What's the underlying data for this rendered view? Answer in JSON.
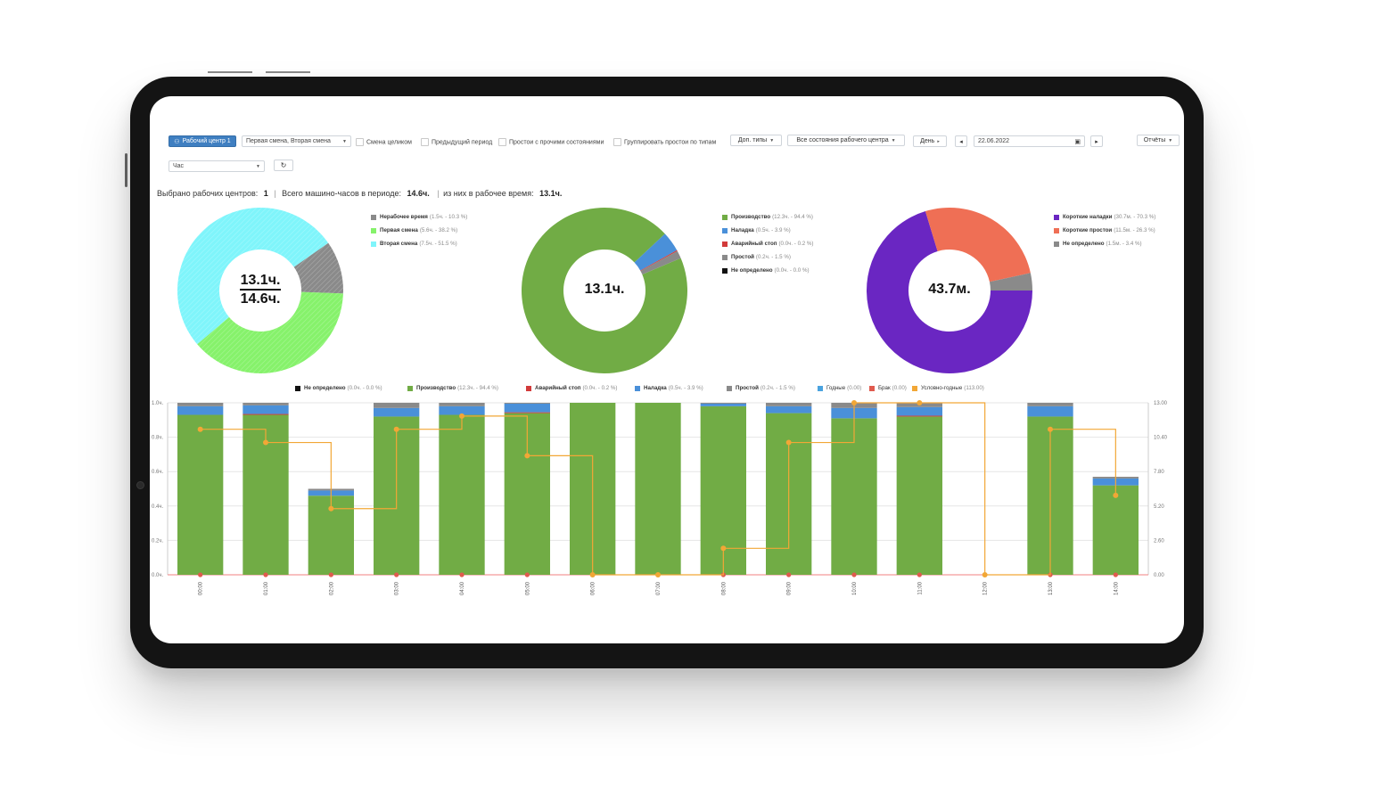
{
  "toolbar": {
    "workcenter_button": "Рабочий центр 1",
    "shifts_select": "Первая смена, Вторая смена",
    "whole_shift": "Смена целиком",
    "previous_period": "Предыдущий период",
    "downtime_with_other": "Простои с прочими состояниями",
    "group_downtime": "Группировать простои по типам",
    "extra_types": "Доп. типы",
    "all_states": "Все состояния рабочего центра",
    "period_select": "День",
    "date_value": "22.06.2022",
    "reports": "Отчёты",
    "granularity_select": "Час"
  },
  "summary": {
    "selected_label": "Выбрано рабочих центров:",
    "selected_value": "1",
    "total_label": "Всего машино-часов в периоде:",
    "total_value": "14.6ч.",
    "work_label": "из них в рабочее время:",
    "work_value": "13.1ч."
  },
  "donut1": {
    "center_top": "13.1ч.",
    "center_bottom": "14.6ч.",
    "legend": [
      {
        "name": "Нерабочее время",
        "detail": "(1.5ч. - 10.3 %)",
        "color": "#8a8a8a",
        "value": 10.3
      },
      {
        "name": "Первая смена",
        "detail": "(5.6ч. - 38.2 %)",
        "color": "#86f26b",
        "value": 38.2
      },
      {
        "name": "Вторая смена",
        "detail": "(7.5ч. - 51.5 %)",
        "color": "#7ff5fb",
        "value": 51.5
      }
    ]
  },
  "donut2": {
    "center": "13.1ч.",
    "legend": [
      {
        "name": "Производство",
        "detail": "(12.3ч. - 94.4 %)",
        "color": "#71ac45",
        "value": 94.4
      },
      {
        "name": "Наладка",
        "detail": "(0.5ч. - 3.9 %)",
        "color": "#4a90d9",
        "value": 3.9
      },
      {
        "name": "Аварийный стоп",
        "detail": "(0.0ч. - 0.2 %)",
        "color": "#d23a3a",
        "value": 0.2
      },
      {
        "name": "Простой",
        "detail": "(0.2ч. - 1.5 %)",
        "color": "#8a8a8a",
        "value": 1.5
      },
      {
        "name": "Не определено",
        "detail": "(0.0ч. - 0.0 %)",
        "color": "#111111",
        "value": 0.0
      }
    ]
  },
  "donut3": {
    "center": "43.7м.",
    "legend": [
      {
        "name": "Короткие наладки",
        "detail": "(30.7м. - 70.3 %)",
        "color": "#6a26c2",
        "value": 70.3
      },
      {
        "name": "Короткие простои",
        "detail": "(11.5м. - 26.3 %)",
        "color": "#ef6f55",
        "value": 26.3
      },
      {
        "name": "Не определено",
        "detail": "(1.5м. - 3.4 %)",
        "color": "#8a8a8a",
        "value": 3.4
      }
    ]
  },
  "bar_legend": [
    {
      "name": "Не определено",
      "detail": "(0.0ч. - 0.0 %)",
      "color": "#111111"
    },
    {
      "name": "Производство",
      "detail": "(12.3ч. - 94.4 %)",
      "color": "#71ac45"
    },
    {
      "name": "Аварийный стоп",
      "detail": "(0.0ч. - 0.2 %)",
      "color": "#d23a3a"
    },
    {
      "name": "Наладка",
      "detail": "(0.5ч. - 3.9 %)",
      "color": "#4a90d9"
    },
    {
      "name": "Простой",
      "detail": "(0.2ч. - 1.5 %)",
      "color": "#8a8a8a"
    },
    {
      "name": "Годные",
      "detail": "(0.00)",
      "color": "#4aa3df"
    },
    {
      "name": "Брак",
      "detail": "(0.00)",
      "color": "#e05a4e"
    },
    {
      "name": "Условно-годные",
      "detail": "(113.00)",
      "color": "#f2a736"
    }
  ],
  "chart_data": {
    "type": "bar",
    "categories": [
      "00:00",
      "01:00",
      "02:00",
      "03:00",
      "04:00",
      "05:00",
      "06:00",
      "07:00",
      "08:00",
      "09:00",
      "10:00",
      "11:00",
      "12:00",
      "13:00",
      "14:00"
    ],
    "y_ticks": [
      "0.0ч.",
      "0.2ч.",
      "0.4ч.",
      "0.6ч.",
      "0.8ч.",
      "1.0ч."
    ],
    "y2_ticks": [
      "0.00",
      "2.60",
      "5.20",
      "7.80",
      "10.40",
      "13.00"
    ],
    "ylim": [
      0,
      1.0
    ],
    "y2lim": [
      0,
      13.0
    ],
    "series": [
      {
        "name": "Производство",
        "color": "#71ac45",
        "values": [
          0.93,
          0.93,
          0.46,
          0.92,
          0.93,
          0.94,
          1.0,
          1.0,
          0.98,
          0.94,
          0.91,
          0.92,
          0,
          0.92,
          0.52
        ]
      },
      {
        "name": "Аварийный стоп",
        "color": "#d23a3a",
        "values": [
          0,
          0.005,
          0,
          0,
          0,
          0.005,
          0,
          0,
          0,
          0,
          0,
          0.005,
          0,
          0,
          0
        ]
      },
      {
        "name": "Наладка",
        "color": "#4a90d9",
        "values": [
          0.05,
          0.05,
          0.03,
          0.05,
          0.05,
          0.05,
          0,
          0,
          0.015,
          0.04,
          0.06,
          0.05,
          0,
          0.06,
          0.04
        ]
      },
      {
        "name": "Простой",
        "color": "#8a8a8a",
        "values": [
          0.02,
          0.015,
          0.01,
          0.03,
          0.02,
          0.005,
          0,
          0,
          0.005,
          0.02,
          0.03,
          0.025,
          0,
          0.02,
          0.01
        ]
      }
    ],
    "line_series": {
      "name": "Условно-годные",
      "color": "#f2a736",
      "values": [
        11,
        10,
        5,
        11,
        12,
        9,
        0,
        0,
        2,
        10,
        13,
        13,
        0,
        11,
        6
      ]
    }
  }
}
